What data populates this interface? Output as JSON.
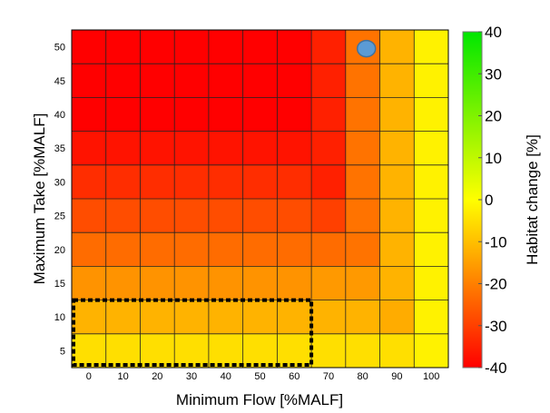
{
  "chart_data": {
    "type": "heatmap",
    "title": "",
    "xlabel": "Minimum Flow [%MALF]",
    "ylabel": "Maximum Take [%MALF]",
    "colorbar_label": "Habitat change [%]",
    "x": [
      0,
      10,
      20,
      30,
      40,
      50,
      60,
      70,
      80,
      90,
      100
    ],
    "y": [
      50,
      45,
      40,
      35,
      30,
      25,
      20,
      15,
      10,
      5
    ],
    "x_tick_labels": [
      "0",
      "10",
      "20",
      "30",
      "40",
      "50",
      "60",
      "70",
      "80",
      "90",
      "100"
    ],
    "y_tick_labels": [
      "50",
      "45",
      "40",
      "35",
      "30",
      "25",
      "20",
      "15",
      "10",
      "5"
    ],
    "colorbar_ticks": [
      "40",
      "30",
      "20",
      "10",
      "0",
      "-10",
      "-20",
      "-30",
      "-40"
    ],
    "clim": [
      -40,
      40
    ],
    "colormap": {
      "low": "#ff0000",
      "mid": "#ffff00",
      "high": "#00e600"
    },
    "values": [
      [
        -40,
        -40,
        -40,
        -40,
        -40,
        -40,
        -40,
        -35,
        -22,
        -12,
        -2
      ],
      [
        -40,
        -40,
        -40,
        -40,
        -40,
        -40,
        -40,
        -35,
        -22,
        -12,
        -2
      ],
      [
        -40,
        -40,
        -40,
        -40,
        -40,
        -40,
        -40,
        -35,
        -22,
        -12,
        -2
      ],
      [
        -37,
        -37,
        -37,
        -37,
        -37,
        -37,
        -37,
        -35,
        -22,
        -12,
        -2
      ],
      [
        -33,
        -33,
        -33,
        -33,
        -33,
        -33,
        -33,
        -35,
        -22,
        -12,
        -2
      ],
      [
        -28,
        -28,
        -28,
        -28,
        -28,
        -28,
        -28,
        -30,
        -22,
        -12,
        -2
      ],
      [
        -23,
        -23,
        -23,
        -23,
        -23,
        -23,
        -23,
        -23,
        -22,
        -12,
        -2
      ],
      [
        -17,
        -17,
        -17,
        -17,
        -17,
        -17,
        -17,
        -16,
        -16,
        -12,
        -2
      ],
      [
        -12,
        -12,
        -12,
        -12,
        -12,
        -12,
        -12,
        -12,
        -12,
        -13,
        -2
      ],
      [
        -5,
        -5,
        -5,
        -5,
        -5,
        -5,
        -5,
        -5,
        -5,
        -5,
        -2
      ]
    ],
    "highlight_box": {
      "x_range": [
        0,
        60
      ],
      "y_range": [
        5,
        10
      ],
      "style": "dashed",
      "color": "#000000"
    },
    "marker": {
      "x": 80,
      "y": 50,
      "color": "#5b9bd5",
      "edge": "#41719c"
    },
    "grid": true
  }
}
